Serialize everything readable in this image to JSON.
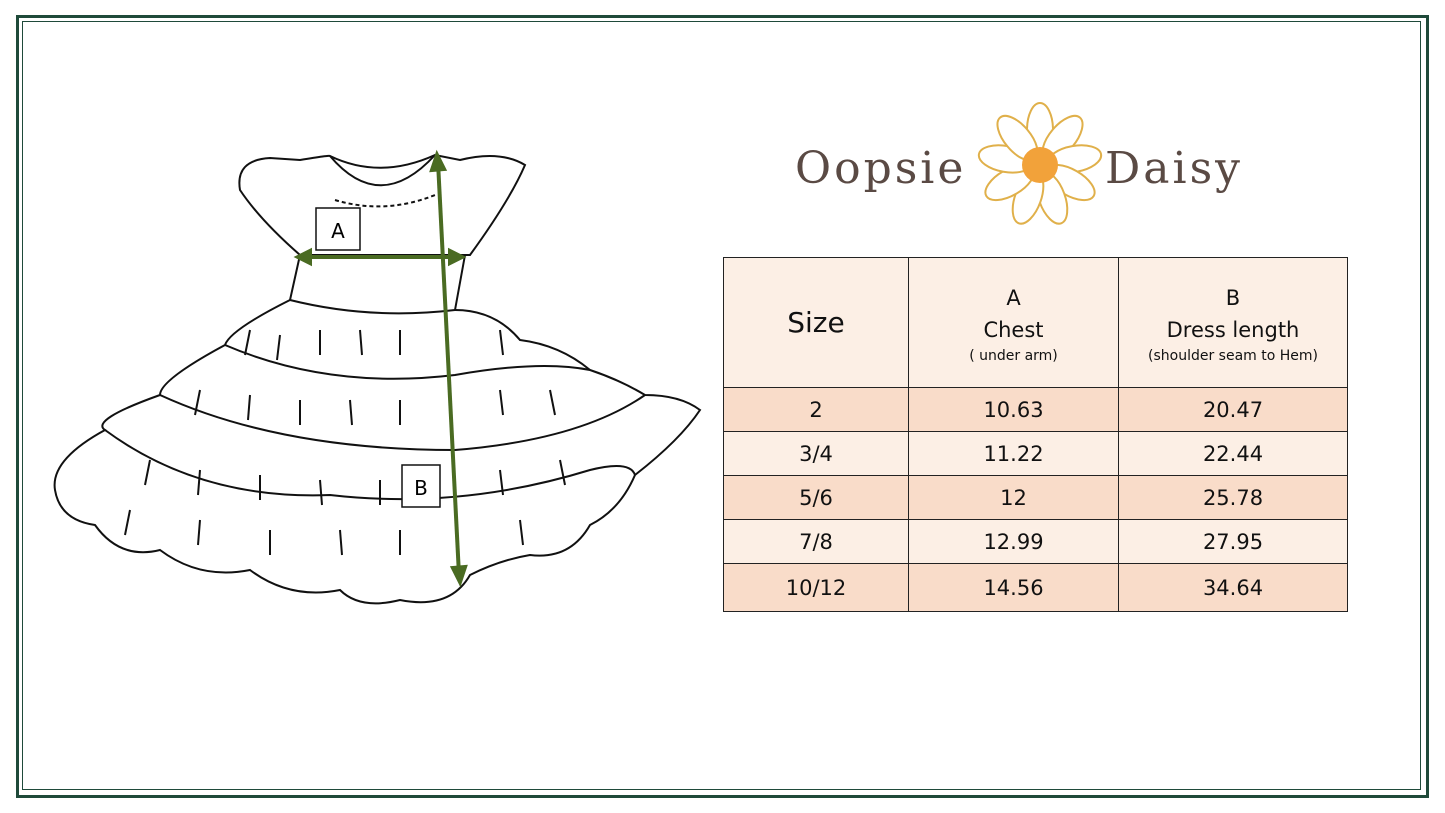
{
  "brand": {
    "name_left": "Oopsie",
    "name_right": "Daisy"
  },
  "diagram": {
    "label_a": "A",
    "label_b": "B",
    "arrow_color": "#4a6b22"
  },
  "table": {
    "headers": {
      "size": "Size",
      "a_letter": "A",
      "a_title": "Chest",
      "a_note": "( under arm)",
      "b_letter": "B",
      "b_title": "Dress length",
      "b_note": "(shoulder seam to Hem)"
    },
    "rows": [
      {
        "size": "2",
        "chest": "10.63",
        "length": "20.47"
      },
      {
        "size": "3/4",
        "chest": "11.22",
        "length": "22.44"
      },
      {
        "size": "5/6",
        "chest": "12",
        "length": "25.78"
      },
      {
        "size": "7/8",
        "chest": "12.99",
        "length": "27.95"
      },
      {
        "size": "10/12",
        "chest": "14.56",
        "length": "34.64"
      }
    ],
    "colors": {
      "header_bg": "#fcefe5",
      "row_dark": "#f9dcc9",
      "row_light": "#fcefe5"
    }
  }
}
